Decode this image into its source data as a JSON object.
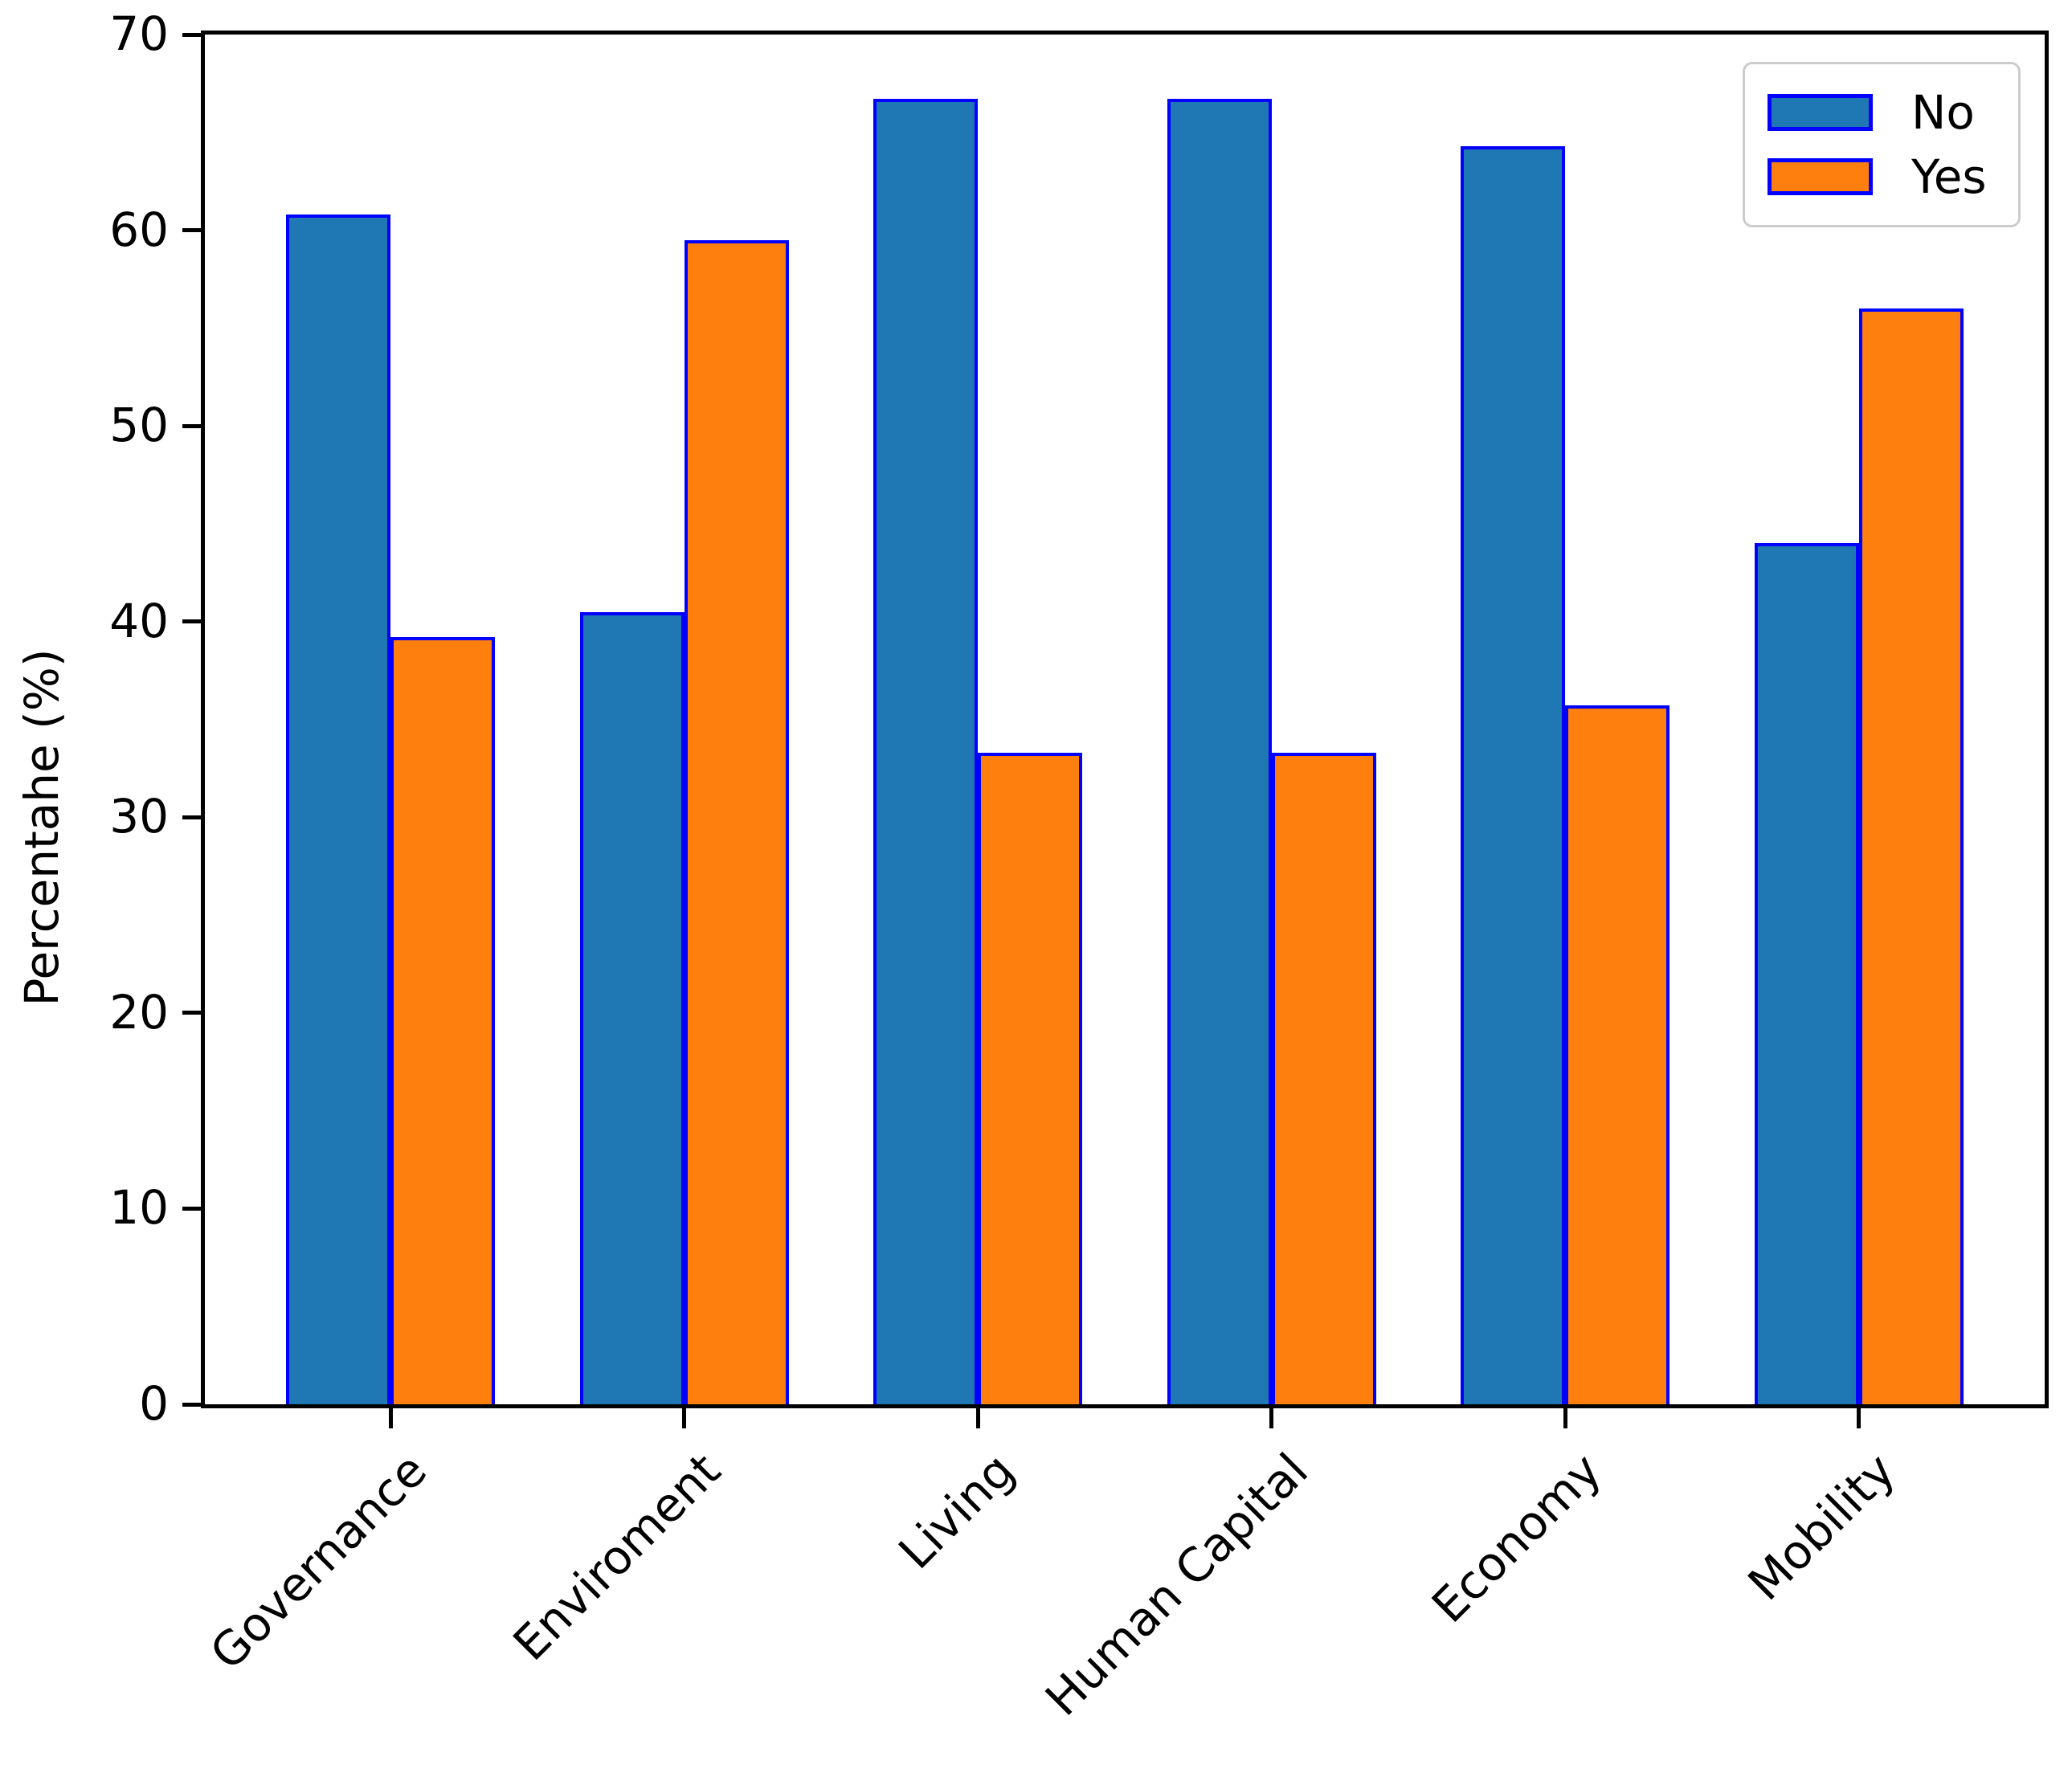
{
  "chart_data": {
    "type": "bar",
    "title": "",
    "xlabel": "",
    "ylabel": "Percentahe (%)",
    "categories": [
      "Governance",
      "Enviroment",
      "Living",
      "Human Capital",
      "Economy",
      "Mobility"
    ],
    "series": [
      {
        "name": "No",
        "color": "#1f77b4",
        "values": [
          60.8,
          40.5,
          66.7,
          66.7,
          64.3,
          44.0
        ]
      },
      {
        "name": "Yes",
        "color": "#ff7f0e",
        "values": [
          39.2,
          59.5,
          33.3,
          33.3,
          35.7,
          56.0
        ]
      }
    ],
    "bar_edge_color": "#0000ff",
    "ylim": [
      0,
      70
    ],
    "yticks": [
      0,
      10,
      20,
      30,
      40,
      50,
      60,
      70
    ],
    "grid": false,
    "legend_position": "upper right"
  }
}
